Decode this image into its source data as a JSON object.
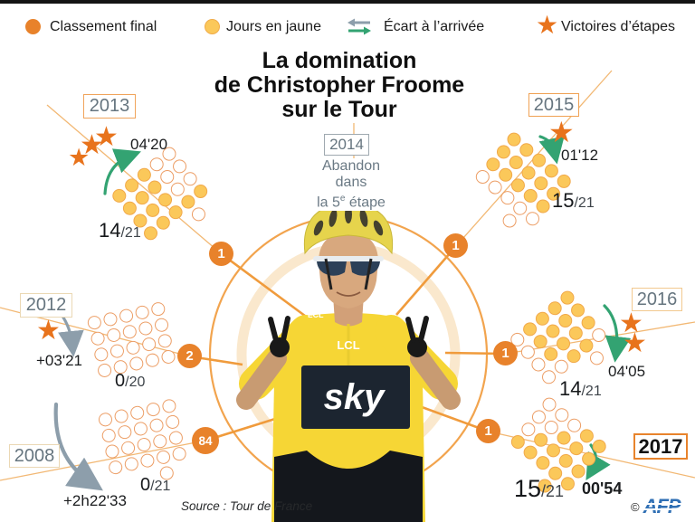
{
  "colors": {
    "orange_rank": "#e8822b",
    "star_orange": "#e8731c",
    "yellow_day_fill": "#fbc85a",
    "yellow_day_stroke": "#f1a94a",
    "empty_day_stroke": "#ec9e66",
    "green_arrow": "#33a372",
    "gray_arrow": "#8d9eab",
    "connector_line": "#f2b874",
    "ring_orange": "#f2a44e",
    "afp_blue": "#2f6fb4",
    "year_text_gray": "#66757f"
  },
  "legend": {
    "items": [
      {
        "icon": "final-ranking-dot",
        "label": "Classement final"
      },
      {
        "icon": "yellow-days-dot",
        "label": "Jours en jaune"
      },
      {
        "icon": "finish-gap-arrows",
        "label": "Écart à l’arrivée"
      },
      {
        "icon": "stage-wins-star",
        "label": "Victoires d’étapes"
      }
    ]
  },
  "title": {
    "line1": "La domination",
    "line2": "de Christopher Froome",
    "line3": "sur le Tour"
  },
  "years": [
    {
      "label": "2008",
      "rank": "84",
      "days_big": "0",
      "days_small": "/21",
      "gap": "+2h22'33",
      "stars": 0,
      "dots": {
        "filled": 0,
        "total": 21,
        "rows": [
          5,
          5,
          5,
          5,
          1
        ],
        "empty": [
          0,
          1,
          2,
          3,
          4,
          5,
          6,
          7,
          8,
          9,
          10,
          11,
          12,
          13,
          14,
          15,
          16,
          17,
          18,
          19,
          20
        ]
      }
    },
    {
      "label": "2012",
      "rank": "2",
      "days_big": "0",
      "days_small": "/20",
      "gap": "+03'21",
      "stars": 1,
      "dots": {
        "filled": 0,
        "total": 20,
        "rows": [
          5,
          5,
          5,
          5
        ],
        "empty": [
          0,
          1,
          2,
          3,
          4,
          5,
          6,
          7,
          8,
          9,
          10,
          11,
          12,
          13,
          14,
          15,
          16,
          17,
          18,
          19
        ]
      }
    },
    {
      "label": "2013",
      "rank": "1",
      "days_big": "14",
      "days_small": "/21",
      "gap": "04'20",
      "stars": 3,
      "dots": {
        "filled": 14,
        "total": 21,
        "rows": [
          5,
          5,
          5,
          5,
          1
        ],
        "empty": [
          3,
          4,
          8,
          9,
          13,
          14,
          20
        ]
      }
    },
    {
      "label": "2014",
      "note_line1": "Abandon",
      "note_line2": "dans",
      "note3_pre": "la 5",
      "note3_sup": "e",
      "note3_post": " étape"
    },
    {
      "label": "2015",
      "rank": "1",
      "days_big": "15",
      "days_small": "/21",
      "gap": "01'12",
      "stars": 1,
      "dots": {
        "filled": 15,
        "total": 21,
        "rows": [
          5,
          5,
          5,
          5,
          1
        ],
        "empty": [
          15,
          16,
          17,
          18,
          19,
          20
        ]
      }
    },
    {
      "label": "2016",
      "rank": "1",
      "days_big": "14",
      "days_small": "/21",
      "gap": "04'05",
      "stars": 2,
      "dots": {
        "filled": 14,
        "total": 21,
        "rows": [
          5,
          5,
          5,
          5,
          1
        ],
        "empty": [
          0,
          5,
          10,
          15,
          16,
          19,
          20
        ]
      }
    },
    {
      "label": "2017",
      "rank": "1",
      "days_big": "15",
      "days_small": "/21",
      "gap": "00'54",
      "stars": 0,
      "dots": {
        "filled": 15,
        "total": 21,
        "rows": [
          5,
          5,
          5,
          5,
          1
        ],
        "empty": [
          0,
          1,
          2,
          5,
          6,
          10
        ]
      }
    }
  ],
  "footer": {
    "source": "Source : Tour de France",
    "copyright": "©",
    "agency": "AFP"
  }
}
